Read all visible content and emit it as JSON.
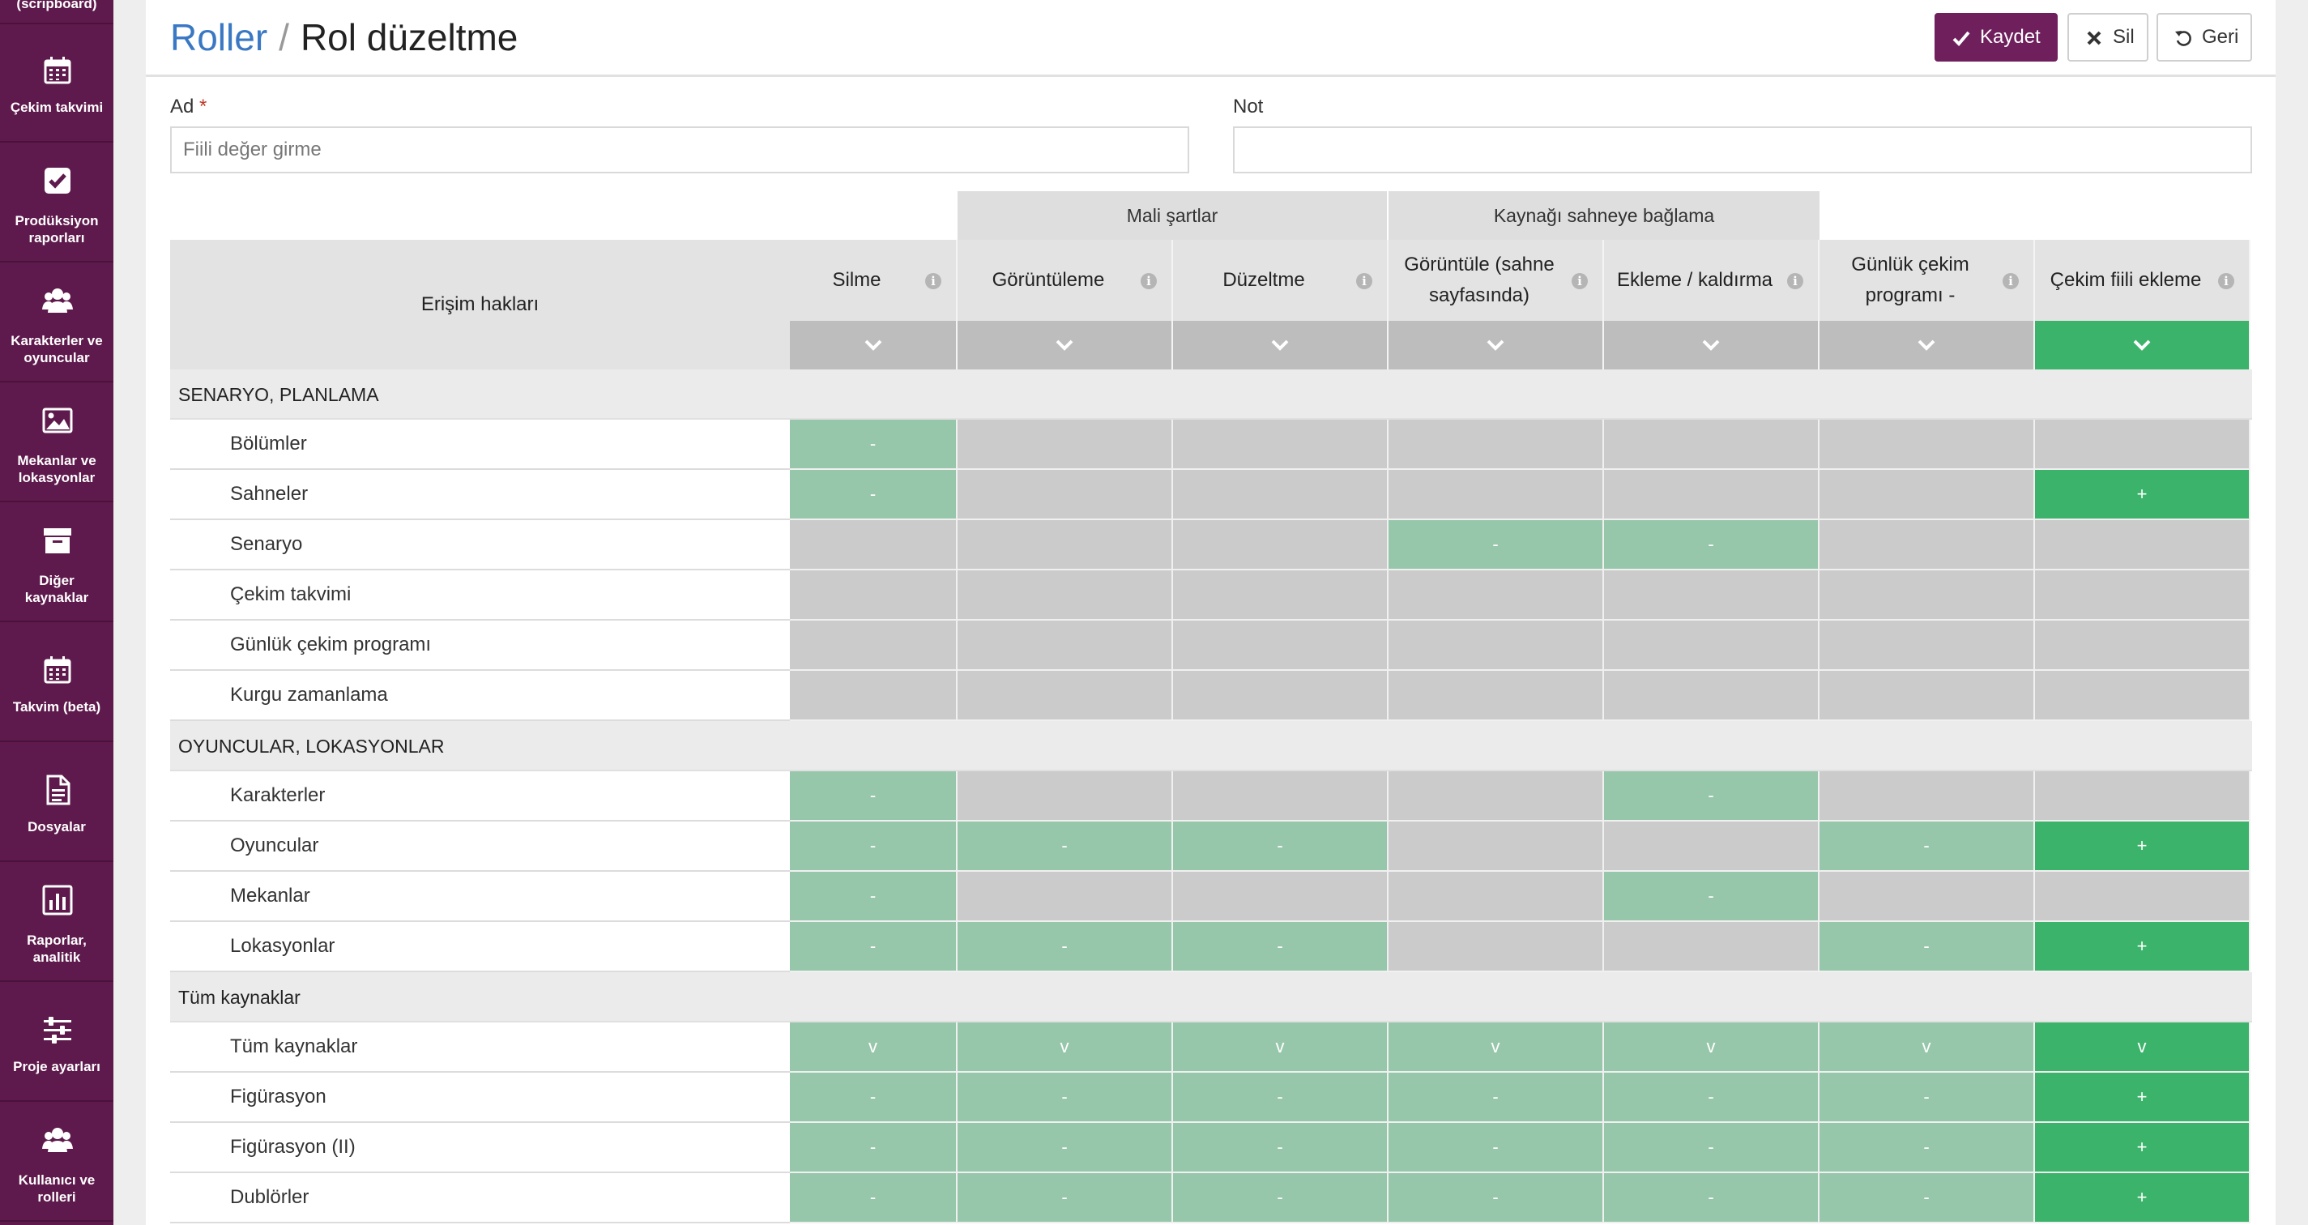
{
  "sidebar": {
    "top_partial": "(scripboard)",
    "items": [
      {
        "label": "Çekim takvimi",
        "icon": "calendar-icon"
      },
      {
        "label": "Prodüksiyon raporları",
        "icon": "checkbox-icon"
      },
      {
        "label": "Karakterler ve oyuncular",
        "icon": "users-icon"
      },
      {
        "label": "Mekanlar ve lokasyonlar",
        "icon": "image-icon"
      },
      {
        "label": "Diğer kaynaklar",
        "icon": "archive-icon"
      },
      {
        "label": "Takvim (beta)",
        "icon": "calendar-icon"
      },
      {
        "label": "Dosyalar",
        "icon": "document-icon"
      },
      {
        "label": "Raporlar, analitik",
        "icon": "bar-chart-icon"
      },
      {
        "label": "Proje ayarları",
        "icon": "sliders-icon"
      },
      {
        "label": "Kullanıcı ve rolleri",
        "icon": "users-icon"
      }
    ]
  },
  "header": {
    "breadcrumb_parent": "Roller",
    "separator": "/",
    "title": "Rol düzeltme",
    "save_label": "Kaydet",
    "delete_label": "Sil",
    "back_label": "Geri"
  },
  "form": {
    "name_label": "Ad",
    "required_mark": "*",
    "name_value": "Fiili değer girme",
    "note_label": "Not",
    "note_value": ""
  },
  "colors": {
    "sidebar_bg": "#5e1a4c",
    "primary_button": "#6e1f5c",
    "link": "#3a78c3",
    "cell_none": "#cbcbcb",
    "cell_light": "#97c7ab",
    "cell_dark": "#3bb36a"
  },
  "table": {
    "access_header": "Erişim hakları",
    "groups": [
      {
        "label": "Mali şartlar"
      },
      {
        "label": "Kaynağı sahneye bağlama"
      }
    ],
    "columns": [
      {
        "label": "Silme",
        "selected": false
      },
      {
        "label": "Görüntüleme",
        "selected": false
      },
      {
        "label": "Düzeltme",
        "selected": false
      },
      {
        "label": "Görüntüle (sahne sayfasında)",
        "selected": false
      },
      {
        "label": "Ekleme / kaldırma",
        "selected": false
      },
      {
        "label": "Günlük çekim programı -",
        "selected": false
      },
      {
        "label": "Çekim fiili ekleme",
        "selected": true
      }
    ],
    "info_glyph": "i",
    "sections": [
      {
        "title": "SENARYO, PLANLAMA",
        "rows": [
          {
            "label": "Bölümler",
            "cells": [
              [
                "l",
                "-"
              ],
              [
                "n",
                ""
              ],
              [
                "n",
                ""
              ],
              [
                "n",
                ""
              ],
              [
                "n",
                ""
              ],
              [
                "n",
                ""
              ],
              [
                "n",
                ""
              ]
            ]
          },
          {
            "label": "Sahneler",
            "cells": [
              [
                "l",
                "-"
              ],
              [
                "n",
                ""
              ],
              [
                "n",
                ""
              ],
              [
                "n",
                ""
              ],
              [
                "n",
                ""
              ],
              [
                "n",
                ""
              ],
              [
                "d",
                "+"
              ]
            ]
          },
          {
            "label": "Senaryo",
            "cells": [
              [
                "n",
                ""
              ],
              [
                "n",
                ""
              ],
              [
                "n",
                ""
              ],
              [
                "l",
                "-"
              ],
              [
                "l",
                "-"
              ],
              [
                "n",
                ""
              ],
              [
                "n",
                ""
              ]
            ]
          },
          {
            "label": "Çekim takvimi",
            "cells": [
              [
                "n",
                ""
              ],
              [
                "n",
                ""
              ],
              [
                "n",
                ""
              ],
              [
                "n",
                ""
              ],
              [
                "n",
                ""
              ],
              [
                "n",
                ""
              ],
              [
                "n",
                ""
              ]
            ]
          },
          {
            "label": "Günlük çekim programı",
            "cells": [
              [
                "n",
                ""
              ],
              [
                "n",
                ""
              ],
              [
                "n",
                ""
              ],
              [
                "n",
                ""
              ],
              [
                "n",
                ""
              ],
              [
                "n",
                ""
              ],
              [
                "n",
                ""
              ]
            ]
          },
          {
            "label": "Kurgu zamanlama",
            "cells": [
              [
                "n",
                ""
              ],
              [
                "n",
                ""
              ],
              [
                "n",
                ""
              ],
              [
                "n",
                ""
              ],
              [
                "n",
                ""
              ],
              [
                "n",
                ""
              ],
              [
                "n",
                ""
              ]
            ]
          }
        ]
      },
      {
        "title": "OYUNCULAR, LOKASYONLAR",
        "rows": [
          {
            "label": "Karakterler",
            "cells": [
              [
                "l",
                "-"
              ],
              [
                "n",
                ""
              ],
              [
                "n",
                ""
              ],
              [
                "n",
                ""
              ],
              [
                "l",
                "-"
              ],
              [
                "n",
                ""
              ],
              [
                "n",
                ""
              ]
            ]
          },
          {
            "label": "Oyuncular",
            "cells": [
              [
                "l",
                "-"
              ],
              [
                "l",
                "-"
              ],
              [
                "l",
                "-"
              ],
              [
                "n",
                ""
              ],
              [
                "n",
                ""
              ],
              [
                "l",
                "-"
              ],
              [
                "d",
                "+"
              ]
            ]
          },
          {
            "label": "Mekanlar",
            "cells": [
              [
                "l",
                "-"
              ],
              [
                "n",
                ""
              ],
              [
                "n",
                ""
              ],
              [
                "n",
                ""
              ],
              [
                "l",
                "-"
              ],
              [
                "n",
                ""
              ],
              [
                "n",
                ""
              ]
            ]
          },
          {
            "label": "Lokasyonlar",
            "cells": [
              [
                "l",
                "-"
              ],
              [
                "l",
                "-"
              ],
              [
                "l",
                "-"
              ],
              [
                "n",
                ""
              ],
              [
                "n",
                ""
              ],
              [
                "l",
                "-"
              ],
              [
                "d",
                "+"
              ]
            ]
          }
        ]
      },
      {
        "title": "Tüm kaynaklar",
        "rows": [
          {
            "label": "Tüm kaynaklar",
            "cells": [
              [
                "l",
                "v"
              ],
              [
                "l",
                "v"
              ],
              [
                "l",
                "v"
              ],
              [
                "l",
                "v"
              ],
              [
                "l",
                "v"
              ],
              [
                "l",
                "v"
              ],
              [
                "d",
                "v"
              ]
            ]
          },
          {
            "label": "Figürasyon",
            "cells": [
              [
                "l",
                "-"
              ],
              [
                "l",
                "-"
              ],
              [
                "l",
                "-"
              ],
              [
                "l",
                "-"
              ],
              [
                "l",
                "-"
              ],
              [
                "l",
                "-"
              ],
              [
                "d",
                "+"
              ]
            ]
          },
          {
            "label": "Figürasyon (II)",
            "cells": [
              [
                "l",
                "-"
              ],
              [
                "l",
                "-"
              ],
              [
                "l",
                "-"
              ],
              [
                "l",
                "-"
              ],
              [
                "l",
                "-"
              ],
              [
                "l",
                "-"
              ],
              [
                "d",
                "+"
              ]
            ]
          },
          {
            "label": "Dublörler",
            "cells": [
              [
                "l",
                "-"
              ],
              [
                "l",
                "-"
              ],
              [
                "l",
                "-"
              ],
              [
                "l",
                "-"
              ],
              [
                "l",
                "-"
              ],
              [
                "l",
                "-"
              ],
              [
                "d",
                "+"
              ]
            ]
          }
        ]
      }
    ]
  }
}
